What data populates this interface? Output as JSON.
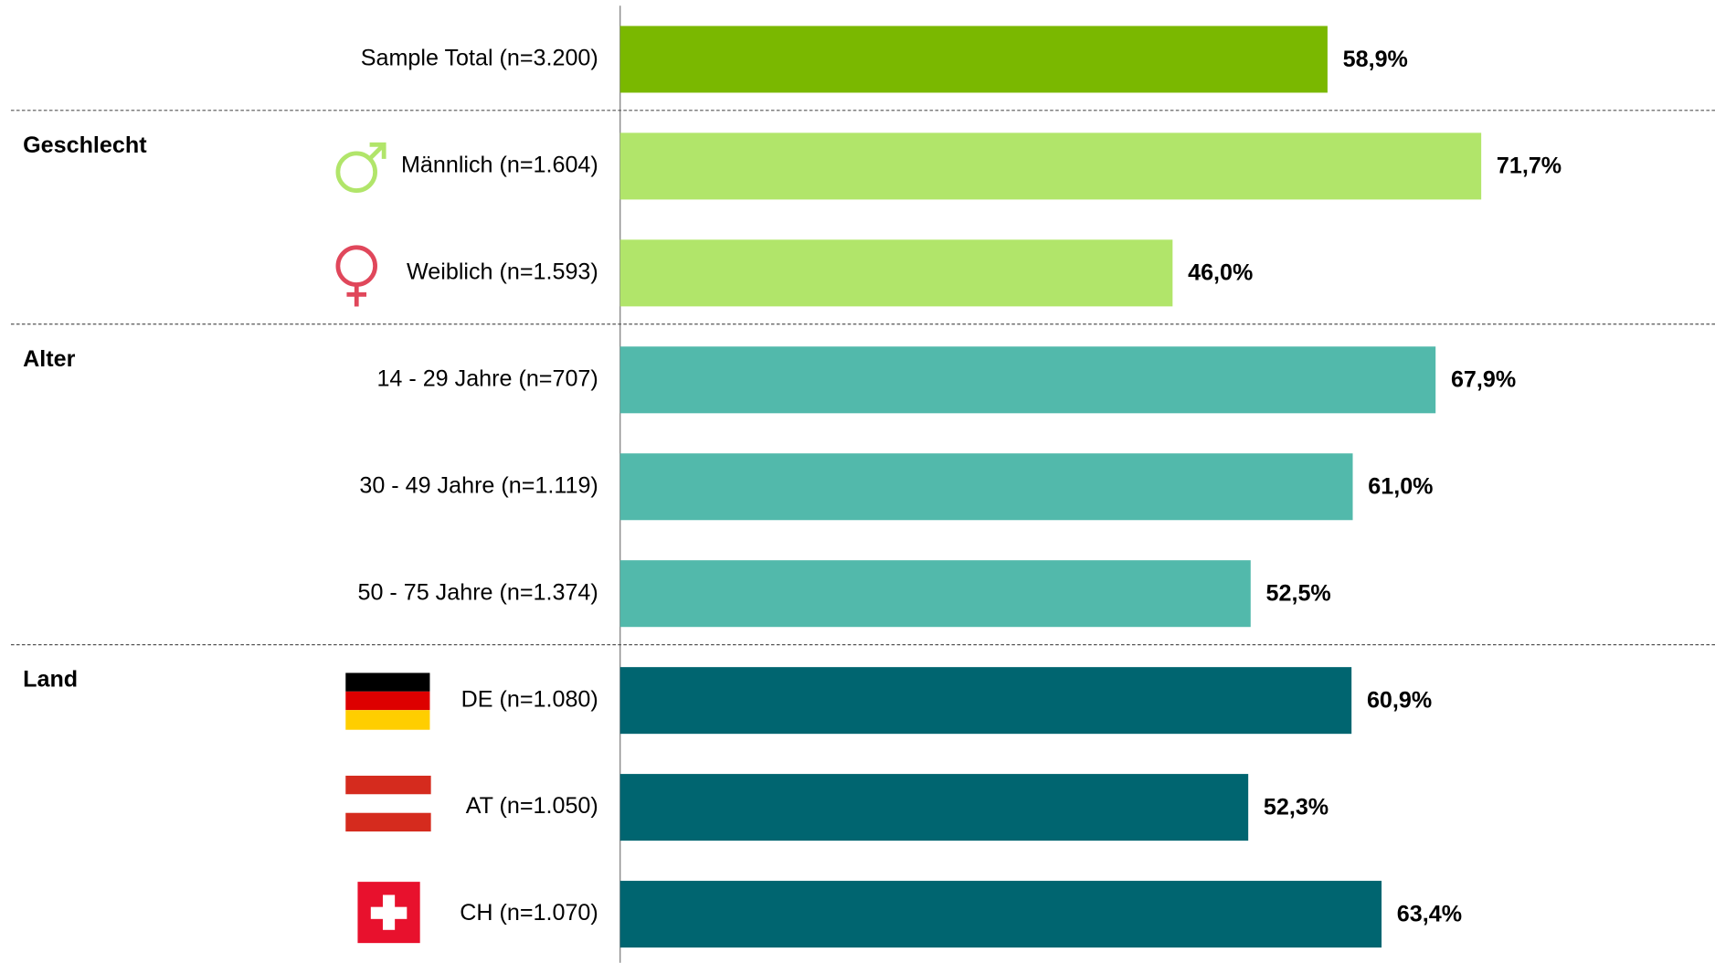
{
  "chart_data": {
    "type": "bar",
    "orientation": "horizontal",
    "xlim": [
      0,
      100
    ],
    "groups": [
      {
        "categories": [
          "Sample Total (n=3.200)"
        ],
        "values": [
          58.9
        ],
        "value_labels": [
          "58,9%"
        ],
        "color": "#7ab800"
      },
      {
        "name": "Geschlecht",
        "categories": [
          "Männlich (n=1.604)",
          "Weiblich (n=1.593)"
        ],
        "values": [
          71.7,
          46.0
        ],
        "value_labels": [
          "71,7%",
          "46,0%"
        ],
        "color": "#b1e56a"
      },
      {
        "name": "Alter",
        "categories": [
          "14 - 29 Jahre (n=707)",
          "30 - 49 Jahre (n=1.119)",
          "50 - 75 Jahre (n=1.374)"
        ],
        "values": [
          67.9,
          61.0,
          52.5
        ],
        "value_labels": [
          "67,9%",
          "61,0%",
          "52,5%"
        ],
        "color": "#52b9ab"
      },
      {
        "name": "Land",
        "categories": [
          "DE (n=1.080)",
          "AT (n=1.050)",
          "CH (n=1.070)"
        ],
        "values": [
          60.9,
          52.3,
          63.4
        ],
        "value_labels": [
          "60,9%",
          "52,3%",
          "63,4%"
        ],
        "color": "#006570"
      }
    ]
  }
}
